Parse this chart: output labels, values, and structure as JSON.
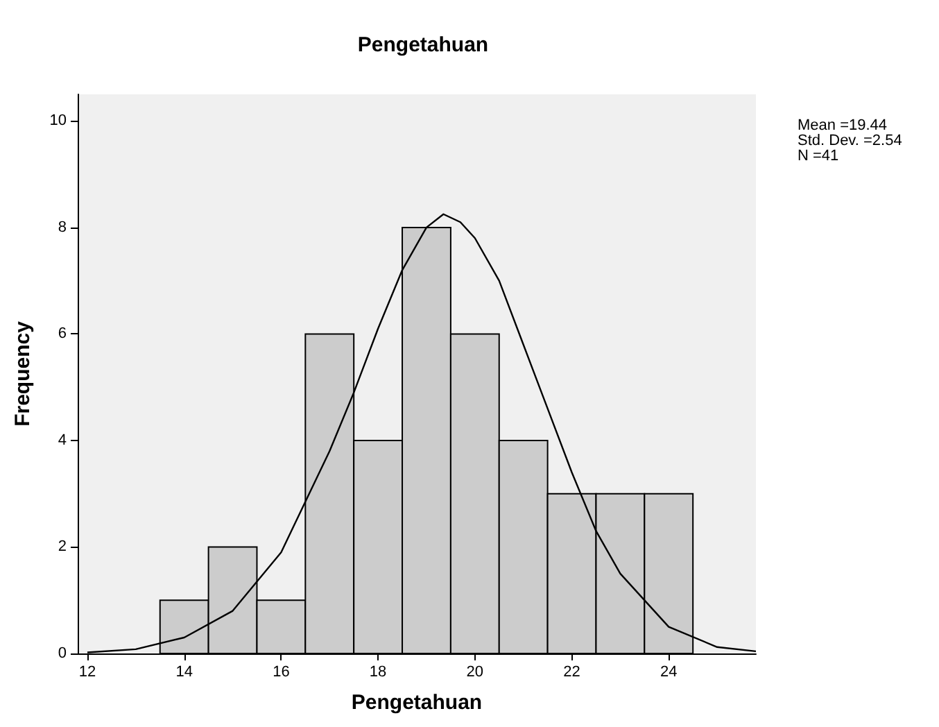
{
  "chart_data": {
    "type": "histogram",
    "title": "Pengetahuan",
    "xlabel": "Pengetahuan",
    "ylabel": "Frequency",
    "bins": [
      13.5,
      14.5,
      15.5,
      16.5,
      17.5,
      18.5,
      19.5,
      20.5,
      21.5,
      22.5,
      23.5,
      24.5
    ],
    "values": [
      1,
      2,
      1,
      6,
      4,
      8,
      6,
      4,
      3,
      3,
      3
    ],
    "color": "#cccccc",
    "xlim": [
      11.8,
      25.8
    ],
    "ylim": [
      0,
      10.5
    ],
    "xticks": [
      12,
      14,
      16,
      18,
      20,
      22,
      24
    ],
    "yticks": [
      0,
      2,
      4,
      6,
      8,
      10
    ],
    "grid": false,
    "annotations": [
      "Mean =19.44",
      "Std. Dev. =2.54",
      "N =41"
    ],
    "series": [
      {
        "type": "line",
        "color": "#000000",
        "marker": "none",
        "x": [
          12,
          13,
          14,
          15,
          16,
          17,
          17.5,
          18,
          18.5,
          19,
          19.35,
          19.7,
          20,
          20.5,
          21,
          21.5,
          22,
          22.5,
          23,
          24,
          25,
          25.8
        ],
        "values": [
          0.02,
          0.08,
          0.3,
          0.8,
          1.9,
          3.8,
          4.9,
          6.1,
          7.2,
          8,
          8.25,
          8.1,
          7.8,
          7,
          5.8,
          4.6,
          3.4,
          2.3,
          1.5,
          0.5,
          0.12,
          0.04
        ]
      }
    ]
  }
}
